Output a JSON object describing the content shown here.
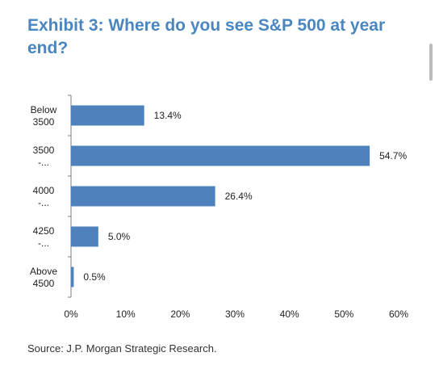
{
  "title": "Exhibit 3: Where do you see S&P 500 at year end?",
  "source": "Source: J.P. Morgan Strategic Research.",
  "chart_data": {
    "type": "bar",
    "orientation": "horizontal",
    "categories": [
      [
        "Below",
        "3500"
      ],
      [
        "3500",
        "-..."
      ],
      [
        "4000",
        "-..."
      ],
      [
        "4250",
        "-..."
      ],
      [
        "Above",
        "4500"
      ]
    ],
    "values": [
      13.4,
      54.7,
      26.4,
      5.0,
      0.5
    ],
    "value_labels": [
      "13.4%",
      "54.7%",
      "26.4%",
      "5.0%",
      "0.5%"
    ],
    "xlim": [
      0,
      60
    ],
    "xticks": [
      0,
      10,
      20,
      30,
      40,
      50,
      60
    ],
    "xtick_labels": [
      "0%",
      "10%",
      "20%",
      "30%",
      "40%",
      "50%",
      "60%"
    ],
    "grid": false,
    "bar_color": "#4f81bd",
    "axis_color": "#7f7f7f"
  }
}
